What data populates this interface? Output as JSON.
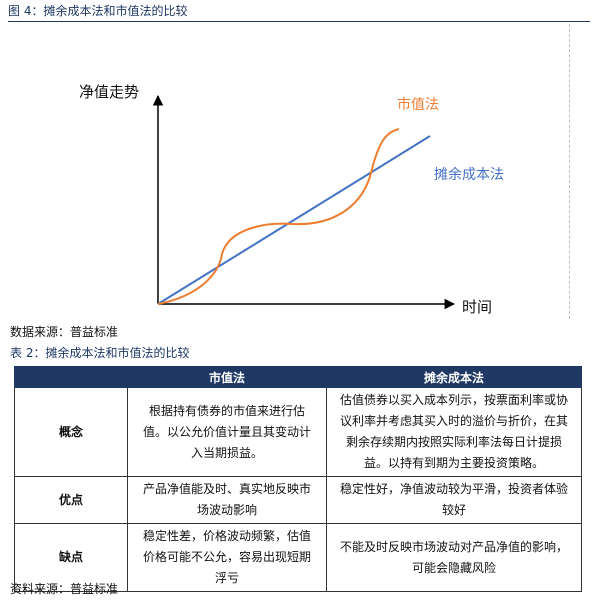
{
  "figure": {
    "caption": "图 4：摊余成本法和市值法的比较",
    "y_axis_label": "净值走势",
    "x_axis_label": "时间",
    "series": [
      {
        "name": "市值法",
        "color": "#ed7d31"
      },
      {
        "name": "摊余成本法",
        "color": "#4472c4"
      }
    ],
    "source": "数据来源：普益标准"
  },
  "table": {
    "caption": "表 2：摊余成本法和市值法的比较",
    "headers": [
      "",
      "市值法",
      "摊余成本法"
    ],
    "rows": [
      {
        "label": "概念",
        "market": "根据持有债券的市值来进行估值。以公允价值计量且其变动计入当期损益。",
        "amortized": "估值债券以买入成本列示，按票面利率或协议利率并考虑其买入时的溢价与折价，在其剩余存续期内按照实际利率法每日计提损益。以持有到期为主要投资策略。"
      },
      {
        "label": "优点",
        "market": "产品净值能及时、真实地反映市场波动影响",
        "amortized": "稳定性好，净值波动较为平滑，投资者体验较好"
      },
      {
        "label": "缺点",
        "market": "稳定性差，价格波动频繁，估值价格可能不公允，容易出现短期浮亏",
        "amortized": "不能及时反映市场波动对产品净值的影响，可能会隐藏风险"
      }
    ],
    "source": "资料来源：普益标准"
  },
  "colors": {
    "header_bg": "#1f3864",
    "market_line": "#ed7d31",
    "amortized_line": "#4472c4"
  }
}
